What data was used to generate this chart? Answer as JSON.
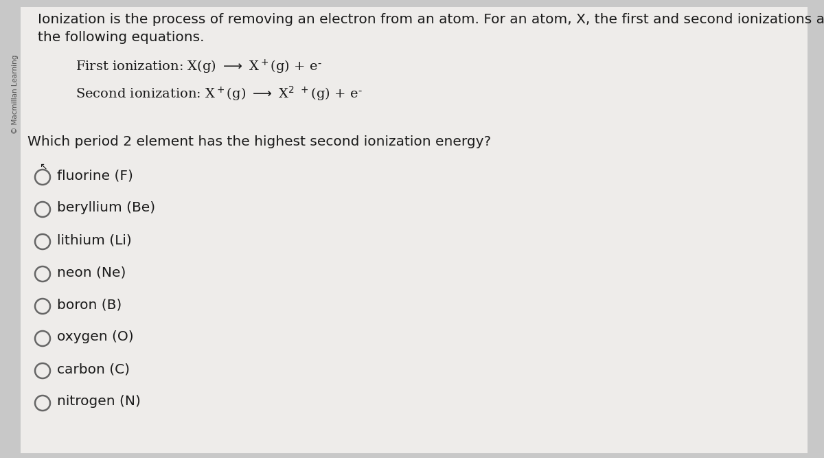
{
  "background_color": "#c8c8c8",
  "panel_color": "#eeecea",
  "watermark_text": "© Macmillan Learning",
  "intro_line1": "Ionization is the process of removing an electron from an atom. For an atom, X, the first and second ionizations are described by",
  "intro_line2": "the following equations.",
  "question": "Which period 2 element has the highest second ionization energy?",
  "options": [
    "fluorine (F)",
    "beryllium (Be)",
    "lithium (Li)",
    "neon (Ne)",
    "boron (B)",
    "oxygen (O)",
    "carbon (C)",
    "nitrogen (N)"
  ],
  "text_color": "#1a1a1a",
  "circle_edge_color": "#666666",
  "font_size_intro": 14.5,
  "font_size_eq": 14.0,
  "font_size_question": 14.5,
  "font_size_option": 14.5,
  "font_size_watermark": 7.5
}
